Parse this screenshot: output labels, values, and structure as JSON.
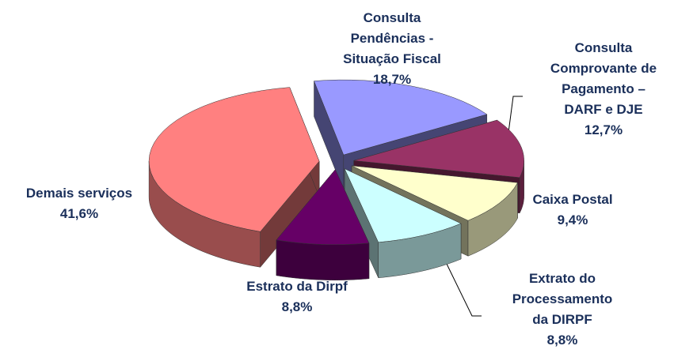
{
  "chart_data": {
    "type": "pie3d",
    "categories": [
      "Consulta\nPendências -\nSituação Fiscal",
      "Consulta\nComprovante de\nPagamento –\nDARF e DJE",
      "Caixa Postal",
      "Extrato do\nProcessamento\nda DIRPF",
      "Estrato da Dirpf",
      "Demais serviços"
    ],
    "values": [
      18.7,
      12.7,
      9.4,
      8.8,
      8.8,
      41.6
    ],
    "value_labels": [
      "18,7%",
      "12,7%",
      "9,4%",
      "8,8%",
      "8,8%",
      "41,6%"
    ],
    "colors": [
      "#9999ff",
      "#993366",
      "#ffffcc",
      "#ccffff",
      "#660066",
      "#ff8080"
    ]
  }
}
